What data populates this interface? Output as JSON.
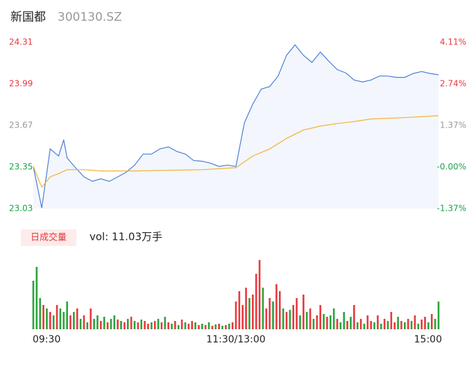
{
  "header": {
    "name": "新国都",
    "code": "300130.SZ"
  },
  "volume_button": "日成交量",
  "volume_label": "vol: 11.03万手",
  "chart_data": [
    {
      "type": "line",
      "xlim": [
        0,
        240
      ],
      "ylim": [
        23.03,
        24.31
      ],
      "yticks": [
        23.03,
        23.35,
        23.67,
        23.99,
        24.31
      ],
      "ytick_colors": [
        "#1aa34a",
        "#1aa34a",
        "#999999",
        "#e8383d",
        "#e8383d"
      ],
      "y2lim": [
        -1.37,
        4.11
      ],
      "y2ticks": [
        {
          "value": -1.37,
          "label": "-1.37%"
        },
        {
          "value": 0,
          "label": "-0.00%"
        },
        {
          "value": 1.37,
          "label": "1.37%"
        },
        {
          "value": 2.74,
          "label": "2.74%"
        },
        {
          "value": 4.11,
          "label": "4.11%"
        }
      ],
      "series": [
        {
          "color": "#4a7fd6",
          "fill": "#f3f6fc",
          "x": [
            0,
            5,
            10,
            15,
            18,
            20,
            25,
            30,
            35,
            40,
            45,
            50,
            55,
            60,
            65,
            70,
            75,
            80,
            85,
            90,
            95,
            100,
            105,
            110,
            115,
            120,
            125,
            130,
            135,
            140,
            145,
            150,
            155,
            160,
            165,
            170,
            175,
            180,
            185,
            190,
            195,
            200,
            205,
            210,
            215,
            220,
            225,
            230,
            235,
            240
          ],
          "values": [
            23.355,
            23.035,
            23.49,
            23.435,
            23.56,
            23.42,
            23.345,
            23.275,
            23.24,
            23.26,
            23.24,
            23.275,
            23.31,
            23.365,
            23.45,
            23.45,
            23.49,
            23.505,
            23.47,
            23.45,
            23.4,
            23.395,
            23.38,
            23.355,
            23.365,
            23.355,
            23.69,
            23.835,
            23.95,
            23.97,
            24.05,
            24.21,
            24.29,
            24.21,
            24.155,
            24.235,
            24.165,
            24.1,
            24.075,
            24.02,
            24.005,
            24.02,
            24.05,
            24.05,
            24.04,
            24.04,
            24.07,
            24.085,
            24.07,
            24.06
          ]
        },
        {
          "color": "#f2b233",
          "x": [
            0,
            5,
            10,
            15,
            20,
            30,
            40,
            60,
            80,
            100,
            120,
            130,
            140,
            150,
            160,
            170,
            180,
            190,
            200,
            220,
            240
          ],
          "values": [
            23.355,
            23.195,
            23.275,
            23.3,
            23.33,
            23.33,
            23.32,
            23.32,
            23.325,
            23.33,
            23.345,
            23.435,
            23.49,
            23.57,
            23.635,
            23.665,
            23.685,
            23.7,
            23.72,
            23.73,
            23.745
          ]
        }
      ]
    },
    {
      "type": "volume",
      "xlim": [
        0,
        240
      ],
      "ylim": [
        0,
        100
      ],
      "xticks": [
        {
          "value": 0,
          "label": "09:30"
        },
        {
          "value": 120,
          "label": "11:30/13:00"
        },
        {
          "value": 240,
          "label": "15:00"
        }
      ],
      "up_color": "#e8383d",
      "down_color": "#2aa33a",
      "x": [
        0,
        2,
        4,
        6,
        8,
        10,
        12,
        14,
        16,
        18,
        20,
        22,
        24,
        26,
        28,
        30,
        32,
        34,
        36,
        38,
        40,
        42,
        44,
        46,
        48,
        50,
        52,
        54,
        56,
        58,
        60,
        62,
        64,
        66,
        68,
        70,
        72,
        74,
        76,
        78,
        80,
        82,
        84,
        86,
        88,
        90,
        92,
        94,
        96,
        98,
        100,
        102,
        104,
        106,
        108,
        110,
        112,
        114,
        116,
        118,
        120,
        122,
        124,
        126,
        128,
        130,
        132,
        134,
        136,
        138,
        140,
        142,
        144,
        146,
        148,
        150,
        152,
        154,
        156,
        158,
        160,
        162,
        164,
        166,
        168,
        170,
        172,
        174,
        176,
        178,
        180,
        182,
        184,
        186,
        188,
        190,
        192,
        194,
        196,
        198,
        200,
        202,
        204,
        206,
        208,
        210,
        212,
        214,
        216,
        218,
        220,
        222,
        224,
        226,
        228,
        230,
        232,
        234,
        236,
        238,
        240
      ],
      "values": [
        70,
        90,
        45,
        35,
        30,
        25,
        20,
        35,
        30,
        25,
        40,
        20,
        25,
        30,
        15,
        20,
        10,
        30,
        15,
        20,
        12,
        18,
        10,
        15,
        20,
        14,
        12,
        10,
        15,
        18,
        12,
        10,
        14,
        12,
        8,
        10,
        12,
        15,
        10,
        18,
        10,
        8,
        12,
        6,
        14,
        10,
        8,
        12,
        10,
        6,
        8,
        6,
        10,
        5,
        7,
        8,
        5,
        6,
        8,
        10,
        40,
        55,
        35,
        60,
        45,
        50,
        80,
        100,
        60,
        30,
        45,
        40,
        65,
        55,
        30,
        25,
        28,
        35,
        45,
        20,
        50,
        25,
        30,
        15,
        20,
        35,
        22,
        18,
        20,
        30,
        15,
        10,
        25,
        12,
        18,
        35,
        10,
        15,
        8,
        20,
        12,
        10,
        20,
        8,
        15,
        12,
        25,
        10,
        18,
        12,
        10,
        15,
        12,
        20,
        8,
        14,
        18,
        10,
        22,
        15,
        40
      ],
      "up": [
        0,
        0,
        0,
        1,
        0,
        1,
        0,
        1,
        0,
        0,
        0,
        1,
        0,
        1,
        0,
        1,
        0,
        1,
        0,
        0,
        1,
        0,
        1,
        0,
        0,
        1,
        0,
        1,
        0,
        1,
        0,
        1,
        0,
        1,
        1,
        0,
        1,
        0,
        1,
        0,
        1,
        0,
        1,
        0,
        1,
        0,
        1,
        1,
        0,
        1,
        0,
        1,
        0,
        1,
        0,
        1,
        0,
        1,
        0,
        1,
        1,
        1,
        1,
        1,
        0,
        1,
        1,
        1,
        0,
        1,
        1,
        0,
        1,
        1,
        0,
        1,
        0,
        1,
        1,
        0,
        1,
        0,
        1,
        0,
        1,
        1,
        0,
        1,
        0,
        0,
        1,
        0,
        0,
        1,
        0,
        1,
        0,
        1,
        0,
        1,
        1,
        0,
        1,
        0,
        1,
        0,
        1,
        1,
        0,
        1,
        0,
        1,
        0,
        1,
        0,
        1,
        1,
        0,
        1,
        0,
        0
      ]
    }
  ]
}
